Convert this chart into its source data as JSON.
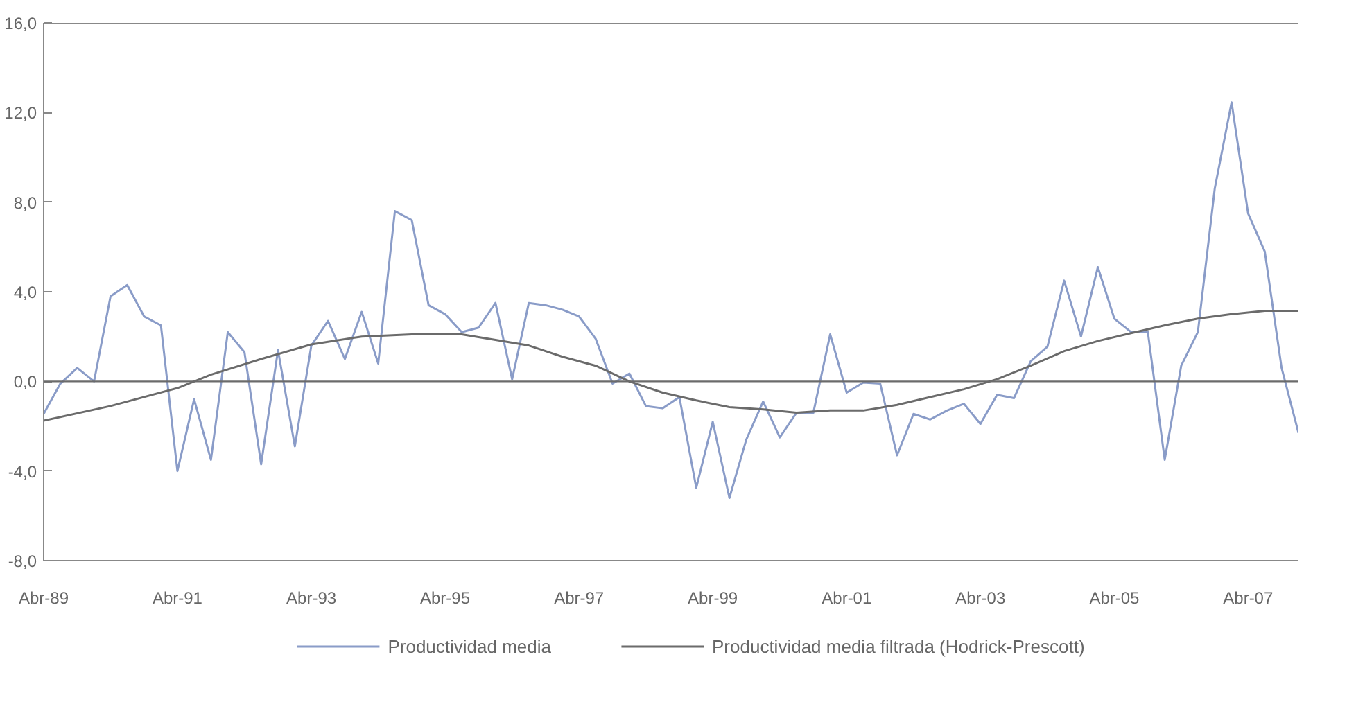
{
  "chart_data": {
    "type": "line",
    "x": [
      "1989-04",
      "1989-07",
      "1989-10",
      "1990-01",
      "1990-04",
      "1990-07",
      "1990-10",
      "1991-01",
      "1991-04",
      "1991-07",
      "1991-10",
      "1992-01",
      "1992-04",
      "1992-07",
      "1992-10",
      "1993-01",
      "1993-04",
      "1993-07",
      "1993-10",
      "1994-01",
      "1994-04",
      "1994-07",
      "1994-10",
      "1995-01",
      "1995-04",
      "1995-07",
      "1995-10",
      "1996-01",
      "1996-04",
      "1996-07",
      "1996-10",
      "1997-01",
      "1997-04",
      "1997-07",
      "1997-10",
      "1998-01",
      "1998-04",
      "1998-07",
      "1998-10",
      "1999-01",
      "1999-04",
      "1999-07",
      "1999-10",
      "2000-01",
      "2000-04",
      "2000-07",
      "2000-10",
      "2001-01",
      "2001-04",
      "2001-07",
      "2001-10",
      "2002-01",
      "2002-04",
      "2002-07",
      "2002-10",
      "2003-01",
      "2003-04",
      "2003-07",
      "2003-10",
      "2004-01",
      "2004-04",
      "2004-07",
      "2004-10",
      "2005-01",
      "2005-04",
      "2005-07",
      "2005-10",
      "2006-01",
      "2006-04",
      "2006-07",
      "2006-10",
      "2007-01",
      "2007-04",
      "2007-07",
      "2007-10",
      "2008-01"
    ],
    "series": [
      {
        "name": "Productividad media",
        "color": "#8a9cc8",
        "values": [
          -1.45,
          -0.1,
          0.6,
          0.0,
          3.8,
          4.3,
          2.9,
          2.5,
          -4.0,
          -0.8,
          -3.5,
          2.2,
          1.3,
          -3.7,
          1.4,
          -2.9,
          1.6,
          2.7,
          1.0,
          3.1,
          0.8,
          7.6,
          7.2,
          3.4,
          3.0,
          2.2,
          2.4,
          3.5,
          0.1,
          3.5,
          3.4,
          3.2,
          2.9,
          1.9,
          -0.1,
          0.35,
          -1.1,
          -1.2,
          -0.7,
          -4.75,
          -1.8,
          -5.2,
          -2.6,
          -0.9,
          -2.5,
          -1.4,
          -1.4,
          2.1,
          -0.5,
          -0.05,
          -0.1,
          -3.3,
          -1.45,
          -1.7,
          -1.3,
          -1.0,
          -1.9,
          -0.6,
          -0.75,
          0.9,
          1.55,
          4.5,
          2.0,
          5.1,
          2.8,
          2.2,
          2.2,
          -3.5,
          0.7,
          2.2,
          8.6,
          12.45,
          7.5,
          5.8,
          0.6,
          -2.3
        ]
      },
      {
        "name": "Productividad media filtrada (Hodrick-Prescott)",
        "color": "#6b6b6b",
        "x": [
          "1989-04",
          "1990-04",
          "1991-04",
          "1991-10",
          "1992-07",
          "1993-04",
          "1994-01",
          "1994-10",
          "1995-07",
          "1996-01",
          "1996-07",
          "1997-01",
          "1997-07",
          "1998-01",
          "1998-07",
          "1999-01",
          "1999-07",
          "2000-01",
          "2000-07",
          "2001-01",
          "2001-07",
          "2002-01",
          "2002-07",
          "2003-01",
          "2003-07",
          "2004-01",
          "2004-07",
          "2005-01",
          "2005-07",
          "2006-01",
          "2006-07",
          "2007-01",
          "2007-07",
          "2008-01"
        ],
        "values": [
          -1.75,
          -1.1,
          -0.3,
          0.3,
          1.0,
          1.65,
          2.0,
          2.1,
          2.1,
          1.85,
          1.6,
          1.1,
          0.7,
          0.0,
          -0.5,
          -0.85,
          -1.15,
          -1.25,
          -1.4,
          -1.3,
          -1.3,
          -1.05,
          -0.7,
          -0.35,
          0.1,
          0.7,
          1.35,
          1.8,
          2.15,
          2.5,
          2.8,
          3.0,
          3.15,
          3.15
        ]
      }
    ],
    "xlim": [
      "1989-04",
      "2008-01"
    ],
    "xticks": [
      {
        "value": "1989-04",
        "label": "Abr-89"
      },
      {
        "value": "1991-04",
        "label": "Abr-91"
      },
      {
        "value": "1993-04",
        "label": "Abr-93"
      },
      {
        "value": "1995-04",
        "label": "Abr-95"
      },
      {
        "value": "1997-04",
        "label": "Abr-97"
      },
      {
        "value": "1999-04",
        "label": "Abr-99"
      },
      {
        "value": "2001-04",
        "label": "Abr-01"
      },
      {
        "value": "2003-04",
        "label": "Abr-03"
      },
      {
        "value": "2005-04",
        "label": "Abr-05"
      },
      {
        "value": "2007-04",
        "label": "Abr-07"
      }
    ],
    "ylim": [
      -8,
      16
    ],
    "yticks": [
      {
        "value": -8,
        "label": "-8,0"
      },
      {
        "value": -4,
        "label": "-4,0"
      },
      {
        "value": 0,
        "label": "0,0"
      },
      {
        "value": 4,
        "label": "4,0"
      },
      {
        "value": 8,
        "label": "8,0"
      },
      {
        "value": 12,
        "label": "12,0"
      },
      {
        "value": 16,
        "label": "16,0"
      }
    ],
    "ref_lines": [
      {
        "axis": "y",
        "value": 0,
        "color": "#6b6b6b"
      }
    ],
    "grid": false,
    "legend": "bottom",
    "marker": "none",
    "line_style": "solid"
  }
}
